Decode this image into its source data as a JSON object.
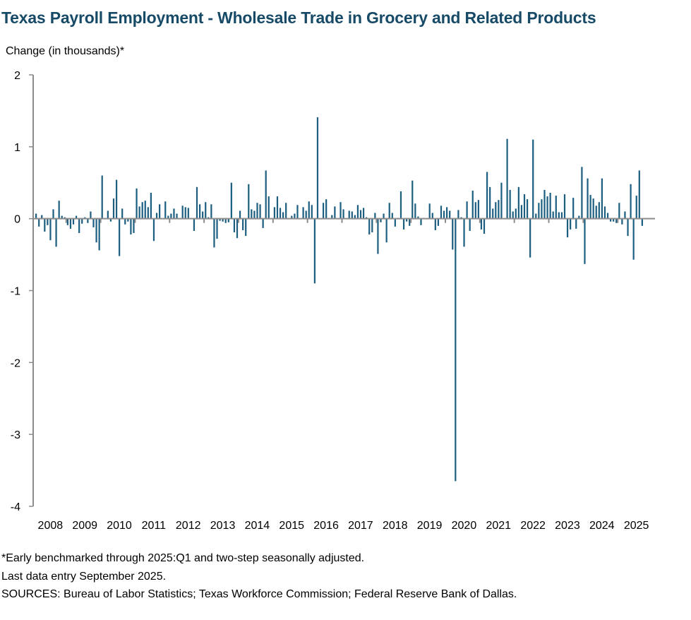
{
  "chart_data": {
    "type": "bar",
    "title": "Texas Payroll Employment - Wholesale Trade in Grocery and Related Products",
    "ylabel": "Change (in thousands)*",
    "xlabel": "",
    "ylim": [
      -4,
      2
    ],
    "yticks": [
      "2",
      "1",
      "0",
      "-1",
      "-2",
      "-3",
      "-4"
    ],
    "ytick_values": [
      2,
      1,
      0,
      -1,
      -2,
      -3,
      -4
    ],
    "xticks": [
      "2008",
      "2009",
      "2010",
      "2011",
      "2012",
      "2013",
      "2014",
      "2015",
      "2016",
      "2017",
      "2018",
      "2019",
      "2020",
      "2021",
      "2022",
      "2023",
      "2024",
      "2025"
    ],
    "frequency": "monthly",
    "start": "2008-02",
    "end": "2025-09",
    "bar_color": "#1b5e80",
    "values": [
      0.07,
      -0.11,
      0.05,
      -0.18,
      -0.09,
      -0.3,
      0.13,
      -0.39,
      0.25,
      0.04,
      0.02,
      -0.09,
      -0.14,
      -0.08,
      0.04,
      -0.2,
      -0.07,
      0.02,
      -0.06,
      0.1,
      -0.12,
      -0.33,
      -0.44,
      0.6,
      0.01,
      0.11,
      -0.04,
      0.28,
      0.54,
      -0.52,
      0.14,
      -0.08,
      -0.04,
      -0.22,
      -0.2,
      0.42,
      0.17,
      0.23,
      0.25,
      0.16,
      0.36,
      -0.31,
      0.08,
      0.2,
      0,
      0.24,
      0.04,
      0.07,
      0.14,
      0.07,
      0,
      0.18,
      0.16,
      0.15,
      0.01,
      -0.17,
      0.44,
      0.2,
      0.1,
      0.23,
      0.02,
      0.2,
      -0.4,
      -0.28,
      -0.03,
      -0.04,
      -0.06,
      -0.05,
      0.5,
      -0.19,
      -0.27,
      0.11,
      -0.16,
      -0.24,
      0.48,
      0.13,
      0.11,
      0.22,
      0.2,
      -0.13,
      0.67,
      0.31,
      0,
      0.16,
      0.31,
      0.15,
      0.09,
      0.22,
      0,
      0.04,
      0.07,
      0.19,
      0,
      0.16,
      0.11,
      0.24,
      0.19,
      -0.9,
      1.41,
      0,
      0.22,
      0.27,
      0.01,
      0.05,
      0.17,
      0,
      0.23,
      0.13,
      0,
      0.11,
      0.1,
      0.05,
      0.19,
      0.12,
      0.15,
      0.02,
      -0.22,
      -0.19,
      0.08,
      -0.49,
      -0.05,
      0.07,
      -0.33,
      0.22,
      0.08,
      -0.11,
      0.01,
      0.38,
      -0.15,
      -0.04,
      -0.1,
      0.53,
      0.21,
      0.03,
      -0.09,
      0.01,
      0,
      0.21,
      0.08,
      -0.16,
      -0.1,
      0.18,
      0.11,
      0.16,
      0.11,
      -0.43,
      -3.65,
      0.12,
      0.02,
      -0.39,
      0.24,
      -0.17,
      0.39,
      0.23,
      0.26,
      -0.15,
      -0.21,
      0.65,
      0.44,
      0.14,
      0.23,
      0.26,
      0.5,
      0,
      1.11,
      0.4,
      0.1,
      0.14,
      0.44,
      0.19,
      0.34,
      0.27,
      -0.54,
      1.1,
      0.07,
      0.22,
      0.27,
      0.4,
      0.31,
      0.36,
      0.1,
      0.32,
      0.09,
      0.09,
      0.34,
      -0.26,
      -0.15,
      0.29,
      -0.14,
      0.04,
      0.72,
      -0.63,
      0.56,
      0.33,
      0.28,
      0.18,
      0.23,
      0.56,
      0.17,
      0.08,
      -0.04,
      -0.04,
      -0.06,
      0.22,
      -0.08,
      0.1,
      -0.24,
      0.48,
      -0.57,
      0.32,
      0.67,
      -0.1
    ],
    "grid": false,
    "legend": "none"
  },
  "notes": {
    "line1": "*Early benchmarked through 2025:Q1 and two-step seasonally adjusted.",
    "line2": "Last data entry September 2025.",
    "line3": "SOURCES:  Bureau of Labor Statistics; Texas Workforce Commission;  Federal Reserve Bank of Dallas."
  }
}
